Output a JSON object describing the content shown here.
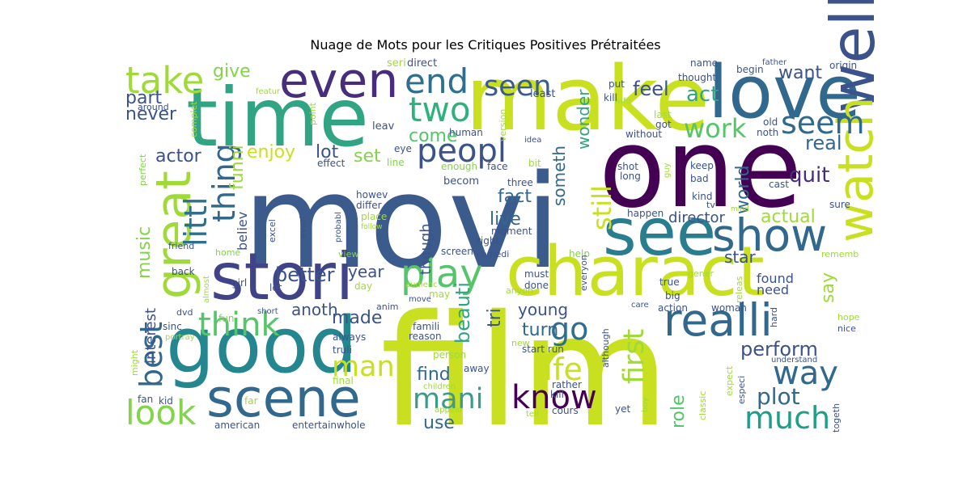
{
  "title": "Nuage de Mots pour les Critiques Positives Prétraitées",
  "words": [
    {
      "text": "movi",
      "color": "#3b5b8c"
    },
    {
      "text": "film",
      "color": "#c8e020"
    },
    {
      "text": "one",
      "color": "#440154"
    },
    {
      "text": "make",
      "color": "#c8e020"
    },
    {
      "text": "time",
      "color": "#31a484"
    },
    {
      "text": "good",
      "color": "#24868e"
    },
    {
      "text": "charact",
      "color": "#c8e020"
    },
    {
      "text": "love",
      "color": "#31688e"
    },
    {
      "text": "stori",
      "color": "#404387"
    },
    {
      "text": "see",
      "color": "#287d8e"
    },
    {
      "text": "scene",
      "color": "#31688e"
    },
    {
      "text": "well",
      "color": "#3b528b"
    },
    {
      "text": "realli",
      "color": "#31688e"
    },
    {
      "text": "even",
      "color": "#472d7b"
    },
    {
      "text": "great",
      "color": "#a0da39"
    },
    {
      "text": "watch",
      "color": "#c8e020"
    },
    {
      "text": "show",
      "color": "#31688e"
    },
    {
      "text": "play",
      "color": "#54c568"
    },
    {
      "text": "peopl",
      "color": "#3b528b"
    },
    {
      "text": "take",
      "color": "#a0da39"
    },
    {
      "text": "end",
      "color": "#2e6e8e"
    },
    {
      "text": "two",
      "color": "#2db27d"
    },
    {
      "text": "seen",
      "color": "#3b5b8c"
    },
    {
      "text": "seem",
      "color": "#31688e"
    },
    {
      "text": "work",
      "color": "#54c568"
    },
    {
      "text": "think",
      "color": "#54c568"
    },
    {
      "text": "littl",
      "color": "#2e6e8e"
    },
    {
      "text": "thing",
      "color": "#31688e"
    },
    {
      "text": "look",
      "color": "#83d34b"
    },
    {
      "text": "best",
      "color": "#31688e"
    },
    {
      "text": "man",
      "color": "#c8e020"
    },
    {
      "text": "mani",
      "color": "#3b9a8a"
    },
    {
      "text": "know",
      "color": "#440154"
    },
    {
      "text": "life",
      "color": "#c8e020"
    },
    {
      "text": "go",
      "color": "#2e6e8e"
    },
    {
      "text": "way",
      "color": "#31688e"
    },
    {
      "text": "much",
      "color": "#1f9e89"
    },
    {
      "text": "first",
      "color": "#a0da39"
    },
    {
      "text": "still",
      "color": "#c8e020"
    },
    {
      "text": "perform",
      "color": "#3b528b"
    },
    {
      "text": "plot",
      "color": "#31688e"
    },
    {
      "text": "quit",
      "color": "#472d7b"
    },
    {
      "text": "real",
      "color": "#31688e"
    },
    {
      "text": "act",
      "color": "#31a484"
    },
    {
      "text": "feel",
      "color": "#3b528b"
    },
    {
      "text": "want",
      "color": "#3b528b"
    },
    {
      "text": "give",
      "color": "#83d34b"
    },
    {
      "text": "part",
      "color": "#3b528b"
    },
    {
      "text": "never",
      "color": "#3b528b"
    },
    {
      "text": "actor",
      "color": "#3b528b"
    },
    {
      "text": "enjoy",
      "color": "#c8e020"
    },
    {
      "text": "lot",
      "color": "#3b528b"
    },
    {
      "text": "set",
      "color": "#83d34b"
    },
    {
      "text": "come",
      "color": "#54c568"
    },
    {
      "text": "fact",
      "color": "#31688e"
    },
    {
      "text": "live",
      "color": "#31688e"
    },
    {
      "text": "wonder",
      "color": "#31a484"
    },
    {
      "text": "someth",
      "color": "#31688e"
    },
    {
      "text": "world",
      "color": "#31688e"
    },
    {
      "text": "actual",
      "color": "#a0da39"
    },
    {
      "text": "director",
      "color": "#3b528b"
    },
    {
      "text": "funni",
      "color": "#a0da39"
    },
    {
      "text": "believ",
      "color": "#3b528b"
    },
    {
      "text": "music",
      "color": "#83d34b"
    },
    {
      "text": "better",
      "color": "#3b528b"
    },
    {
      "text": "year",
      "color": "#3b528b"
    },
    {
      "text": "anoth",
      "color": "#3b528b"
    },
    {
      "text": "made",
      "color": "#3b528b"
    },
    {
      "text": "beauti",
      "color": "#31a484"
    },
    {
      "text": "tri",
      "color": "#3b528b"
    },
    {
      "text": "young",
      "color": "#3b528b"
    },
    {
      "text": "turn",
      "color": "#31688e"
    },
    {
      "text": "find",
      "color": "#31688e"
    },
    {
      "text": "use",
      "color": "#31688e"
    },
    {
      "text": "role",
      "color": "#54c568"
    },
    {
      "text": "interest",
      "color": "#3b528b"
    },
    {
      "text": "say",
      "color": "#a0da39"
    },
    {
      "text": "star",
      "color": "#3b528b"
    },
    {
      "text": "though",
      "color": "#3b528b"
    },
    {
      "text": "found",
      "color": "#3b528b"
    },
    {
      "text": "need",
      "color": "#3b528b"
    }
  ]
}
